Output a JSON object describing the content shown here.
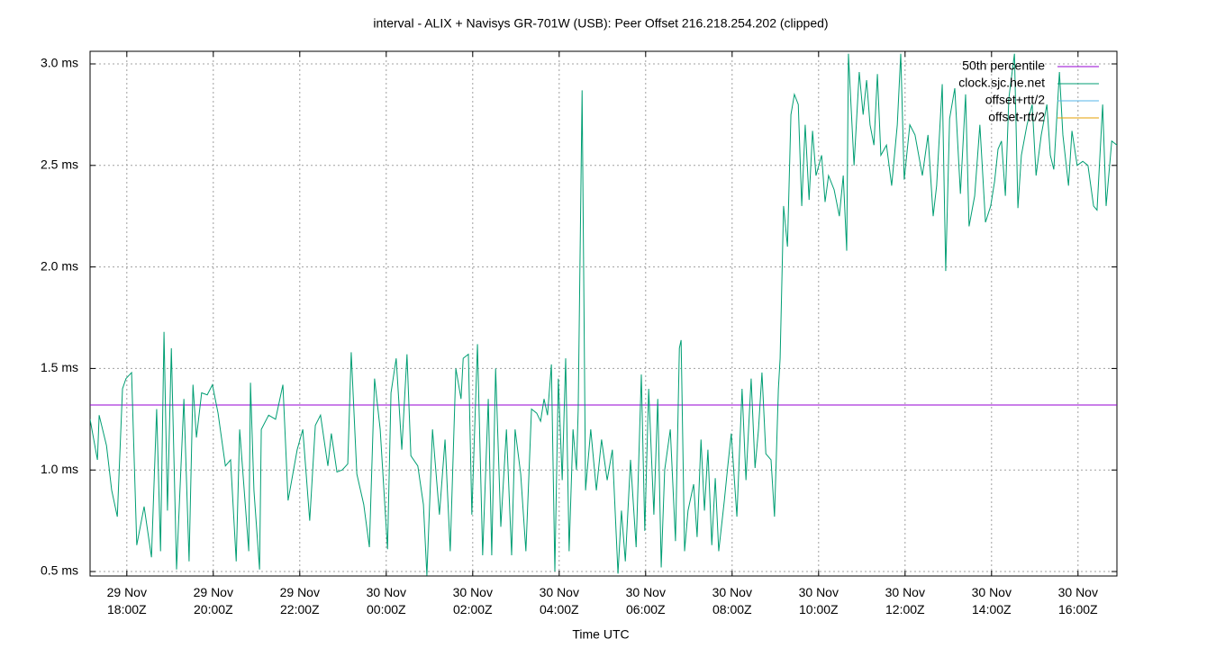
{
  "chart_data": {
    "type": "line",
    "title": "interval - ALIX + Navisys GR-701W (USB): Peer Offset 216.218.254.202 (clipped)",
    "x_label": "Time UTC",
    "xlim": [
      17.15,
      40.9
    ],
    "xticks": [
      {
        "value": 18,
        "label": "29 Nov\n18:00Z"
      },
      {
        "value": 20,
        "label": "29 Nov\n20:00Z"
      },
      {
        "value": 22,
        "label": "29 Nov\n22:00Z"
      },
      {
        "value": 24,
        "label": "30 Nov\n00:00Z"
      },
      {
        "value": 26,
        "label": "30 Nov\n02:00Z"
      },
      {
        "value": 28,
        "label": "30 Nov\n04:00Z"
      },
      {
        "value": 30,
        "label": "30 Nov\n06:00Z"
      },
      {
        "value": 32,
        "label": "30 Nov\n08:00Z"
      },
      {
        "value": 34,
        "label": "30 Nov\n10:00Z"
      },
      {
        "value": 36,
        "label": "30 Nov\n12:00Z"
      },
      {
        "value": 38,
        "label": "30 Nov\n14:00Z"
      },
      {
        "value": 40,
        "label": "30 Nov\n16:00Z"
      }
    ],
    "ylim": [
      0.478,
      3.062
    ],
    "yticks": [
      {
        "value": 0.5,
        "label": "0.5 ms"
      },
      {
        "value": 1.0,
        "label": "1.0 ms"
      },
      {
        "value": 1.5,
        "label": "1.5 ms"
      },
      {
        "value": 2.0,
        "label": "2.0 ms"
      },
      {
        "value": 2.5,
        "label": "2.5 ms"
      },
      {
        "value": 3.0,
        "label": "3.0 ms"
      }
    ],
    "grid": true,
    "legend": "top-right",
    "x": [
      17.15,
      17.32,
      17.36,
      17.53,
      17.65,
      17.78,
      17.9,
      17.98,
      18.11,
      18.23,
      18.4,
      18.57,
      18.69,
      18.78,
      18.86,
      18.94,
      19.03,
      19.15,
      19.32,
      19.44,
      19.53,
      19.61,
      19.73,
      19.86,
      19.98,
      20.11,
      20.28,
      20.4,
      20.53,
      20.61,
      20.82,
      20.86,
      20.94,
      21.07,
      21.11,
      21.28,
      21.44,
      21.61,
      21.73,
      21.94,
      22.07,
      22.23,
      22.36,
      22.48,
      22.65,
      22.73,
      22.86,
      22.98,
      23.11,
      23.19,
      23.32,
      23.48,
      23.61,
      23.73,
      23.86,
      24.03,
      24.11,
      24.23,
      24.36,
      24.48,
      24.57,
      24.73,
      24.86,
      24.94,
      25.07,
      25.23,
      25.36,
      25.48,
      25.61,
      25.73,
      25.78,
      25.9,
      25.98,
      26.11,
      26.23,
      26.36,
      26.44,
      26.53,
      26.65,
      26.78,
      26.9,
      26.98,
      27.11,
      27.23,
      27.36,
      27.48,
      27.57,
      27.65,
      27.73,
      27.82,
      27.9,
      27.98,
      28.07,
      28.15,
      28.23,
      28.32,
      28.4,
      28.44,
      28.53,
      28.61,
      28.73,
      28.86,
      28.98,
      29.11,
      29.23,
      29.36,
      29.44,
      29.53,
      29.65,
      29.78,
      29.9,
      29.98,
      30.07,
      30.19,
      30.28,
      30.36,
      30.44,
      30.57,
      30.69,
      30.78,
      30.82,
      30.9,
      30.98,
      31.11,
      31.19,
      31.28,
      31.36,
      31.44,
      31.53,
      31.61,
      31.69,
      31.82,
      31.9,
      31.98,
      32.11,
      32.23,
      32.32,
      32.44,
      32.53,
      32.61,
      32.69,
      32.78,
      32.9,
      32.98,
      33.07,
      33.11,
      33.19,
      33.28,
      33.36,
      33.44,
      33.53,
      33.61,
      33.69,
      33.78,
      33.86,
      33.94,
      34.07,
      34.15,
      34.23,
      34.36,
      34.48,
      34.57,
      34.65,
      34.69,
      34.82,
      34.94,
      35.03,
      35.11,
      35.19,
      35.28,
      35.36,
      35.44,
      35.57,
      35.69,
      35.82,
      35.9,
      35.98,
      36.11,
      36.23,
      36.4,
      36.53,
      36.65,
      36.73,
      36.86,
      36.94,
      37.03,
      37.15,
      37.28,
      37.4,
      37.48,
      37.61,
      37.73,
      37.86,
      37.98,
      38.07,
      38.15,
      38.23,
      38.32,
      38.4,
      38.53,
      38.61,
      38.69,
      38.82,
      38.94,
      39.03,
      39.15,
      39.28,
      39.36,
      39.44,
      39.57,
      39.65,
      39.78,
      39.86,
      39.98,
      40.11,
      40.23,
      40.36,
      40.44,
      40.57,
      40.65,
      40.78,
      40.9
    ],
    "series": [
      {
        "name": "50th percentile",
        "color": "#9400d3",
        "y": 1.32
      },
      {
        "name": "clock.sjc.he.net",
        "color": "#009e73",
        "values": [
          1.25,
          1.05,
          1.27,
          1.12,
          0.9,
          0.77,
          1.4,
          1.45,
          1.48,
          0.63,
          0.82,
          0.57,
          1.3,
          0.6,
          1.68,
          0.8,
          1.6,
          0.51,
          1.35,
          0.55,
          1.42,
          1.16,
          1.38,
          1.37,
          1.42,
          1.28,
          1.02,
          1.05,
          0.55,
          1.2,
          0.6,
          1.43,
          0.9,
          0.51,
          1.2,
          1.27,
          1.25,
          1.42,
          0.85,
          1.1,
          1.2,
          0.75,
          1.22,
          1.27,
          1.02,
          1.18,
          0.99,
          1.0,
          1.03,
          1.58,
          0.98,
          0.83,
          0.62,
          1.45,
          1.2,
          0.61,
          1.38,
          1.55,
          1.1,
          1.57,
          1.07,
          1.02,
          0.83,
          0.48,
          1.2,
          0.78,
          1.15,
          0.6,
          1.5,
          1.35,
          1.55,
          1.57,
          0.78,
          1.62,
          0.58,
          1.35,
          0.58,
          1.5,
          0.72,
          1.2,
          0.58,
          1.2,
          0.98,
          0.6,
          1.3,
          1.28,
          1.24,
          1.35,
          1.27,
          1.52,
          0.5,
          1.45,
          0.95,
          1.55,
          0.6,
          1.2,
          1.0,
          1.3,
          2.87,
          0.9,
          1.2,
          0.9,
          1.15,
          0.95,
          1.1,
          0.49,
          0.8,
          0.55,
          1.05,
          0.62,
          1.47,
          0.7,
          1.4,
          0.78,
          1.35,
          0.52,
          1.0,
          1.2,
          0.65,
          1.6,
          1.64,
          0.6,
          0.8,
          0.93,
          0.67,
          1.15,
          0.8,
          1.1,
          0.63,
          0.96,
          0.6,
          0.85,
          1.02,
          1.18,
          0.77,
          1.4,
          0.95,
          1.45,
          1.01,
          1.2,
          1.48,
          1.08,
          1.05,
          0.77,
          1.4,
          1.55,
          2.3,
          2.1,
          2.75,
          2.85,
          2.8,
          2.3,
          2.7,
          2.33,
          2.67,
          2.45,
          2.55,
          2.32,
          2.45,
          2.38,
          2.25,
          2.45,
          2.08,
          3.05,
          2.5,
          2.96,
          2.75,
          2.92,
          2.7,
          2.6,
          2.95,
          2.55,
          2.6,
          2.4,
          2.7,
          3.05,
          2.43,
          2.7,
          2.65,
          2.45,
          2.65,
          2.25,
          2.4,
          2.9,
          1.98,
          2.73,
          2.88,
          2.36,
          2.85,
          2.2,
          2.35,
          2.7,
          2.22,
          2.3,
          2.42,
          2.58,
          2.62,
          2.35,
          2.83,
          3.05,
          2.29,
          2.55,
          2.7,
          2.8,
          2.45,
          2.65,
          2.8,
          2.55,
          2.48,
          2.96,
          2.65,
          2.4,
          2.67,
          2.5,
          2.52,
          2.5,
          2.3,
          2.28,
          2.8,
          2.3,
          2.62,
          2.6
        ]
      },
      {
        "name": "offset+rtt/2",
        "color": "#56b4e9"
      },
      {
        "name": "offset-rtt/2",
        "color": "#e69f00"
      }
    ]
  }
}
